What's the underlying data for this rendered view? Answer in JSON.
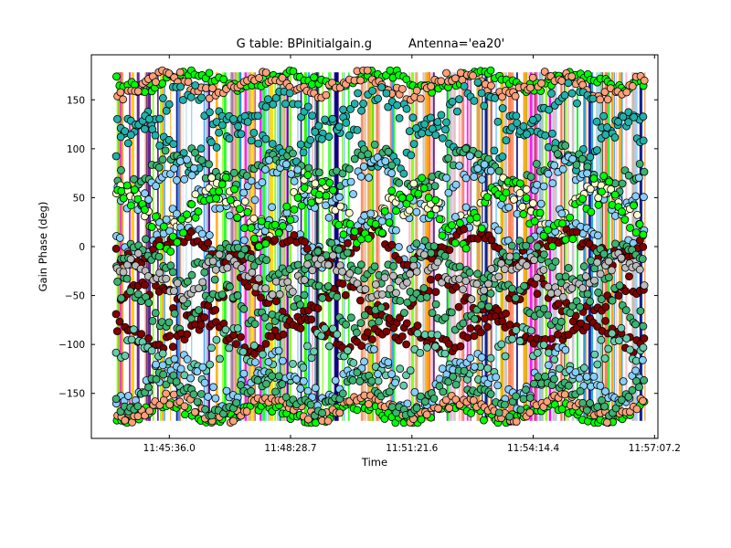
{
  "chart_data": {
    "type": "scatter",
    "title_left": "G table: BPinitialgain.g",
    "title_right": "Antenna='ea20'",
    "xlabel": "Time",
    "ylabel": "Gain Phase (deg)",
    "xlim": [
      "11:43:45",
      "11:57:12"
    ],
    "ylim": [
      -196,
      196
    ],
    "xticks": [
      "11:45:36.0",
      "11:48:28.7",
      "11:51:21.6",
      "11:54:14.4",
      "11:57:07.2"
    ],
    "yticks": [
      -150,
      -100,
      -50,
      0,
      50,
      100,
      150
    ],
    "x_data_range": [
      "11:44:20",
      "11:56:55"
    ],
    "vertical_line_colors": [
      "#ff7f50",
      "#7cfc00",
      "#1e90ff",
      "#4b0082",
      "#ff00ff",
      "#00ff00",
      "#ffb6c1",
      "#ffa500",
      "#c0c0c0",
      "#ffffff",
      "#f4a460",
      "#87cefa",
      "#000080",
      "#ffd700"
    ],
    "series": [
      {
        "color": "#00ff00",
        "center": 170,
        "amplitude": 8
      },
      {
        "color": "#00ff00",
        "center": -170,
        "amplitude": 8
      },
      {
        "color": "#ffa07a",
        "center": 165,
        "amplitude": 10
      },
      {
        "color": "#ffa07a",
        "center": -165,
        "amplitude": 10
      },
      {
        "color": "#20b2aa",
        "center": 140,
        "amplitude": 18
      },
      {
        "color": "#20b2aa",
        "center": 105,
        "amplitude": 18
      },
      {
        "color": "#3cb371",
        "center": 80,
        "amplitude": 15
      },
      {
        "color": "#87cefa",
        "center": 60,
        "amplitude": 20
      },
      {
        "color": "#fffacd",
        "center": 40,
        "amplitude": 20
      },
      {
        "color": "#87cefa",
        "center": 10,
        "amplitude": 20
      },
      {
        "color": "#800000",
        "center": 0,
        "amplitude": 12
      },
      {
        "color": "#3cb371",
        "center": -15,
        "amplitude": 15
      },
      {
        "color": "#00ff00",
        "center": 35,
        "amplitude": 25
      },
      {
        "color": "#800000",
        "center": -55,
        "amplitude": 15
      },
      {
        "color": "#3cb371",
        "center": -60,
        "amplitude": 18
      },
      {
        "color": "#bbbbbb",
        "center": -30,
        "amplitude": 15
      },
      {
        "color": "#800000",
        "center": -90,
        "amplitude": 12
      },
      {
        "color": "#66cdaa",
        "center": -115,
        "amplitude": 20
      },
      {
        "color": "#87cefa",
        "center": -135,
        "amplitude": 20
      },
      {
        "color": "#3cb371",
        "center": -150,
        "amplitude": 15
      }
    ]
  }
}
